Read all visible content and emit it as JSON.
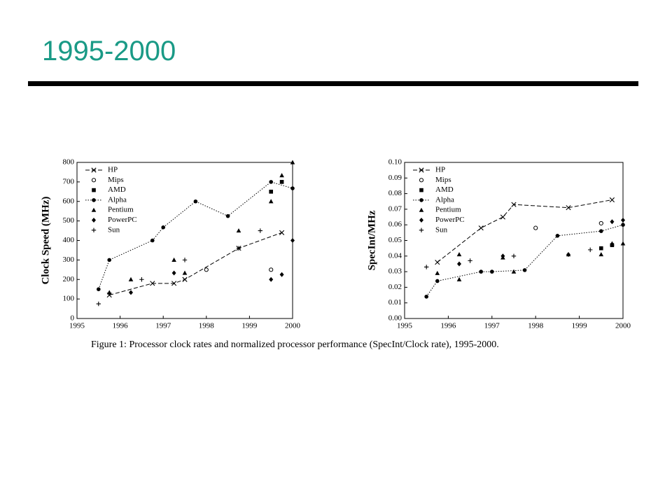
{
  "title": "1995-2000",
  "caption": "Figure 1: Processor clock rates and normalized processor performance (SpecInt/Clock rate), 1995-2000.",
  "chart_data": [
    {
      "type": "scatter",
      "ylabel": "Clock Speed (MHz)",
      "xlim": [
        1995,
        2000
      ],
      "xticks": [
        1995,
        1996,
        1997,
        1998,
        1999,
        2000
      ],
      "ylim": [
        0,
        800
      ],
      "yticks": [
        0,
        100,
        200,
        300,
        400,
        500,
        600,
        700,
        800
      ],
      "series": [
        {
          "name": "HP",
          "marker": "x",
          "line": "dash",
          "color": "#000000",
          "x": [
            1995.75,
            1996.75,
            1997.25,
            1997.5,
            1998.75,
            1999.75
          ],
          "values": [
            120,
            180,
            180,
            200,
            360,
            440
          ]
        },
        {
          "name": "Mips",
          "marker": "circle-open",
          "color": "#000000",
          "x": [
            1998,
            1999.5
          ],
          "values": [
            250,
            250
          ]
        },
        {
          "name": "AMD",
          "marker": "square",
          "color": "#000000",
          "x": [
            1999.5,
            1999.75
          ],
          "values": [
            650,
            700
          ]
        },
        {
          "name": "Alpha",
          "marker": "circle",
          "line": "dot",
          "color": "#000000",
          "x": [
            1995.5,
            1995.75,
            1996.75,
            1997,
            1997.75,
            1998.5,
            1999.5,
            2000
          ],
          "values": [
            150,
            300,
            400,
            467,
            600,
            525,
            700,
            667
          ]
        },
        {
          "name": "Pentium",
          "marker": "triangle",
          "color": "#000000",
          "x": [
            1995.75,
            1996.25,
            1997.25,
            1997.5,
            1998.75,
            1999.5,
            1999.75,
            2000
          ],
          "values": [
            133,
            200,
            300,
            233,
            450,
            600,
            733,
            800
          ]
        },
        {
          "name": "PowerPC",
          "marker": "diamond",
          "color": "#000000",
          "x": [
            1996.25,
            1997.25,
            1999.5,
            1999.75,
            2000
          ],
          "values": [
            133,
            233,
            200,
            225,
            400
          ]
        },
        {
          "name": "Sun",
          "marker": "plus",
          "color": "#000000",
          "x": [
            1995.5,
            1996.5,
            1997.5,
            1998.75,
            1999.25
          ],
          "values": [
            75,
            200,
            300,
            360,
            450
          ]
        }
      ]
    },
    {
      "type": "scatter",
      "ylabel": "SpecInt/MHz",
      "xlim": [
        1995,
        2000
      ],
      "xticks": [
        1995,
        1996,
        1997,
        1998,
        1999,
        2000
      ],
      "ylim": [
        0,
        0.1
      ],
      "yticks": [
        {
          "value": 0,
          "label": "0.00"
        },
        {
          "value": 0.01,
          "label": "0.01"
        },
        {
          "value": 0.02,
          "label": "0.02"
        },
        {
          "value": 0.03,
          "label": "0.03"
        },
        {
          "value": 0.04,
          "label": "0.04"
        },
        {
          "value": 0.05,
          "label": "0.05"
        },
        {
          "value": 0.06,
          "label": "0.06"
        },
        {
          "value": 0.07,
          "label": "0.07"
        },
        {
          "value": 0.08,
          "label": "0.08"
        },
        {
          "value": 0.09,
          "label": "0.09"
        },
        {
          "value": 0.1,
          "label": "0.10"
        }
      ],
      "series": [
        {
          "name": "HP",
          "marker": "x",
          "line": "dash",
          "color": "#000000",
          "x": [
            1995.75,
            1996.75,
            1997.25,
            1997.5,
            1998.75,
            1999.75
          ],
          "values": [
            0.036,
            0.058,
            0.065,
            0.073,
            0.071,
            0.076
          ]
        },
        {
          "name": "Mips",
          "marker": "circle-open",
          "color": "#000000",
          "x": [
            1998,
            1999.5
          ],
          "values": [
            0.058,
            0.061
          ]
        },
        {
          "name": "AMD",
          "marker": "square",
          "color": "#000000",
          "x": [
            1999.5,
            1999.75
          ],
          "values": [
            0.045,
            0.047
          ]
        },
        {
          "name": "Alpha",
          "marker": "circle",
          "line": "dot",
          "color": "#000000",
          "x": [
            1995.5,
            1995.75,
            1996.75,
            1997,
            1997.75,
            1998.5,
            1999.5,
            2000
          ],
          "values": [
            0.014,
            0.024,
            0.03,
            0.03,
            0.031,
            0.053,
            0.056,
            0.06
          ]
        },
        {
          "name": "Pentium",
          "marker": "triangle",
          "color": "#000000",
          "x": [
            1995.75,
            1996.25,
            1996.25,
            1997.25,
            1997.5,
            1998.75,
            1999.5,
            1999.75,
            2000
          ],
          "values": [
            0.029,
            0.041,
            0.025,
            0.039,
            0.03,
            0.041,
            0.041,
            0.048,
            0.048
          ]
        },
        {
          "name": "PowerPC",
          "marker": "diamond",
          "color": "#000000",
          "x": [
            1996.25,
            1997.25,
            1998.75,
            1999.75,
            2000
          ],
          "values": [
            0.035,
            0.04,
            0.041,
            0.062,
            0.063
          ]
        },
        {
          "name": "Sun",
          "marker": "plus",
          "color": "#000000",
          "x": [
            1995.5,
            1996.5,
            1997.5,
            1999.25
          ],
          "values": [
            0.033,
            0.037,
            0.04,
            0.044
          ]
        }
      ]
    }
  ]
}
